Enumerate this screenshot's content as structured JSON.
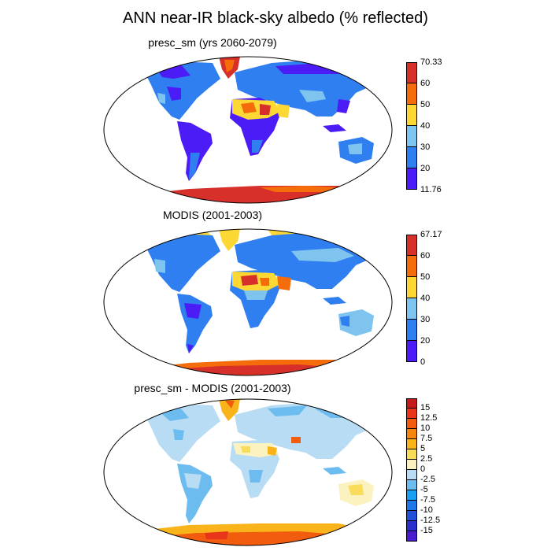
{
  "title": "ANN near-IR black-sky albedo (% reflected)",
  "panels": [
    {
      "title": "presc_sm (yrs 2060-2079)",
      "colorbar": {
        "labels": [
          "70.33",
          "60",
          "50",
          "40",
          "30",
          "20",
          "11.76"
        ],
        "colors": [
          "#d7302a",
          "#f46d0a",
          "#fdd835",
          "#7fc3ef",
          "#2f7ff0",
          "#4b1cf5"
        ]
      }
    },
    {
      "title": "MODIS (2001-2003)",
      "colorbar": {
        "labels": [
          "67.17",
          "60",
          "50",
          "40",
          "30",
          "20",
          "0"
        ],
        "colors": [
          "#d7302a",
          "#f46d0a",
          "#fdd835",
          "#7fc3ef",
          "#2f7ff0",
          "#4b1cf5"
        ]
      }
    },
    {
      "title": "presc_sm - MODIS (2001-2003)",
      "colorbar": {
        "labels": [
          "15",
          "12.5",
          "10",
          "7.5",
          "5",
          "2.5",
          "0",
          "-2.5",
          "-5",
          "-7.5",
          "-10",
          "-12.5",
          "-15"
        ],
        "colors": [
          "#c61a1a",
          "#e8351c",
          "#f25c0f",
          "#f7850d",
          "#f8b41a",
          "#f9dd5a",
          "#fbf2c0",
          "#b7dcf3",
          "#6cbcf0",
          "#1aa0f2",
          "#1f78e8",
          "#2350d8",
          "#2a2fce",
          "#4a1ccf"
        ]
      }
    }
  ]
}
